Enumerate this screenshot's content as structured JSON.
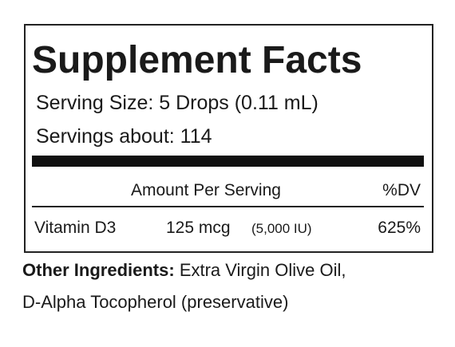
{
  "label": {
    "title": "Supplement Facts",
    "serving_size": "Serving Size: 5 Drops (0.11 mL)",
    "servings": "Servings about: 114",
    "header": {
      "amount": "Amount Per Serving",
      "dv": "%DV"
    },
    "rows": [
      {
        "name": "Vitamin D3",
        "amount": "125 mcg",
        "iu": "(5,000 IU)",
        "dv": "625%"
      }
    ]
  },
  "other_ingredients": {
    "label": "Other Ingredients:",
    "lines": [
      "Extra Virgin Olive Oil,",
      "D-Alpha Tocopherol (preservative)"
    ]
  }
}
